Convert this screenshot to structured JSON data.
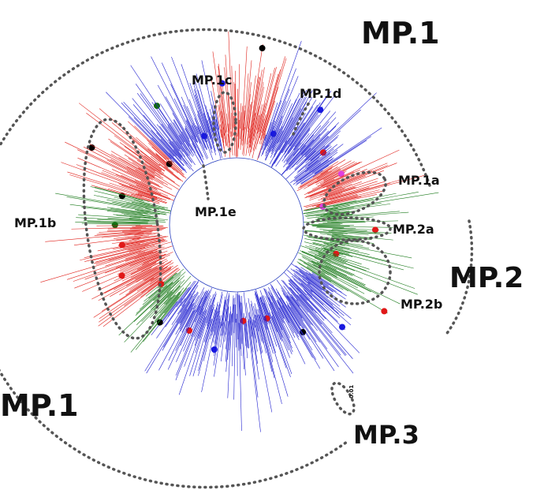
{
  "labels": [
    "MP.1",
    "MP.1c",
    "MP.1d",
    "MP.1a",
    "MP.1e",
    "MP.1b",
    "MP.2a",
    "MP.2",
    "MP.2b",
    "MP.1",
    "MP.3",
    "0.01"
  ]
}
